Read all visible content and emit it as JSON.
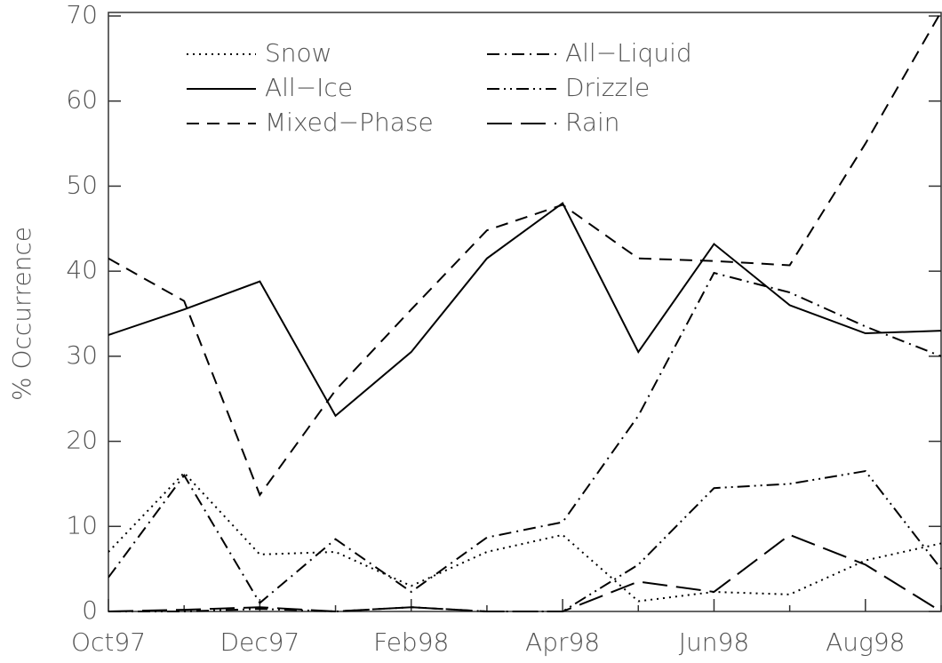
{
  "chart_data": {
    "type": "line",
    "y_label": "% Occurrence",
    "categories": [
      "Oct97",
      null,
      "Dec97",
      null,
      "Feb98",
      null,
      "Apr98",
      null,
      "Jun98",
      null,
      "Aug98",
      null
    ],
    "ylim": [
      0,
      70
    ],
    "yticks": [
      0,
      10,
      20,
      30,
      40,
      50,
      60,
      70
    ],
    "series": [
      {
        "name": "Snow",
        "color": "#000",
        "line_style": "dotted",
        "values": [
          7,
          16.3,
          6.7,
          7,
          3,
          7,
          9,
          1.2,
          2.3,
          2,
          6,
          8
        ]
      },
      {
        "name": "All−Ice",
        "color": "#000",
        "line_style": "solid",
        "values": [
          32.5,
          35.5,
          38.8,
          23,
          30.5,
          41.5,
          48,
          30.5,
          43.2,
          36,
          32.7,
          33
        ]
      },
      {
        "name": "Mixed−Phase",
        "color": "#000",
        "line_style": "dashed",
        "values": [
          41.5,
          36.5,
          13.7,
          26,
          35.5,
          44.8,
          47.8,
          41.5,
          41.2,
          40.7,
          55,
          70.5
        ]
      },
      {
        "name": "All−Liquid",
        "color": "#000",
        "line_style": "dash-dot",
        "values": [
          4,
          16,
          1,
          8.5,
          2.3,
          8.7,
          10.5,
          23,
          39.8,
          37.5,
          33.5,
          30
        ]
      },
      {
        "name": "Drizzle",
        "color": "#000",
        "line_style": "dash-dot-dot",
        "values": [
          0,
          0,
          0.3,
          0,
          0.5,
          0,
          0,
          5.5,
          14.5,
          15,
          16.5,
          5
        ]
      },
      {
        "name": "Rain",
        "color": "#000",
        "line_style": "long-dash",
        "values": [
          0,
          0.2,
          0.5,
          0,
          0.5,
          0,
          0,
          3.5,
          2.3,
          9,
          5.5,
          0
        ]
      }
    ]
  }
}
